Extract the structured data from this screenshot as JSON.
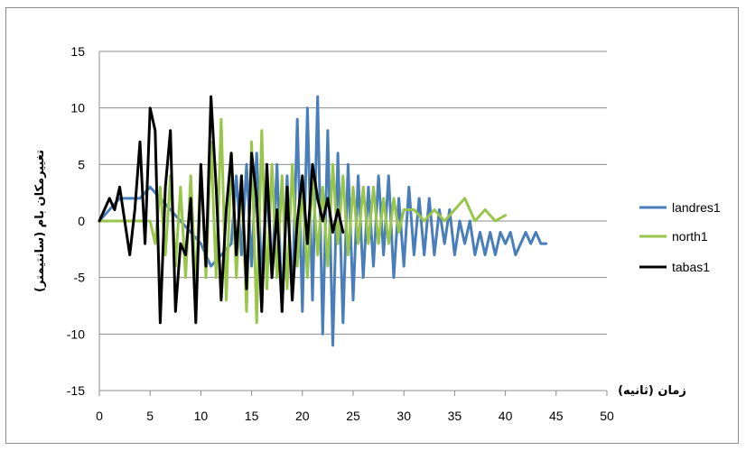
{
  "chart_data": {
    "type": "line",
    "title": "",
    "xlabel": "زمان (ثانیه)",
    "ylabel": "تغییرمکان بام (سانتیمتر)",
    "xlim": [
      0,
      50
    ],
    "ylim": [
      -15,
      15
    ],
    "x_ticks": [
      "0",
      "5",
      "10",
      "15",
      "20",
      "25",
      "30",
      "35",
      "40",
      "45",
      "50"
    ],
    "y_ticks": [
      "15",
      "10",
      "5",
      "0",
      "-5",
      "-10",
      "-15"
    ],
    "grid": "horizontal",
    "legend_position": "right",
    "series": [
      {
        "name": "landres1",
        "color": "#4a7ebb",
        "x": [
          0,
          1,
          2,
          3,
          4,
          5,
          6,
          7,
          8,
          9,
          10,
          11,
          12,
          13,
          13.5,
          14,
          14.5,
          15,
          15.5,
          16,
          16.5,
          17,
          17.5,
          18,
          18.5,
          19,
          19.5,
          20,
          20.5,
          21,
          21.5,
          22,
          22.5,
          23,
          23.5,
          24,
          24.5,
          25,
          25.5,
          26,
          26.5,
          27,
          27.5,
          28,
          28.5,
          29,
          29.5,
          30,
          30.5,
          31,
          31.5,
          32,
          32.5,
          33,
          33.5,
          34,
          34.5,
          35,
          35.5,
          36,
          36.5,
          37,
          37.5,
          38,
          38.5,
          39,
          39.5,
          40,
          40.5,
          41,
          41.5,
          42,
          42.5,
          43,
          43.5,
          44
        ],
        "values": [
          0,
          1,
          2,
          2,
          2,
          3,
          2,
          1,
          0,
          -1,
          -2,
          -4,
          -3,
          -2,
          4,
          -3,
          5,
          -4,
          6,
          -5,
          3,
          -5,
          5,
          -8,
          4,
          -7,
          9,
          -8,
          10,
          -7,
          11,
          -10,
          8,
          -11,
          6,
          -9,
          5,
          -7,
          4,
          -5,
          3,
          -4,
          4,
          -3,
          4,
          -5,
          2,
          -4,
          3,
          -3,
          2,
          -3,
          2,
          -3,
          1,
          -2,
          1,
          -3,
          0,
          -2,
          0,
          -3,
          -1,
          -3,
          -1,
          -3,
          -1,
          -2,
          -1,
          -3,
          -2,
          -1,
          -2,
          -1,
          -2,
          -2
        ]
      },
      {
        "name": "north1",
        "color": "#98c64a",
        "x": [
          0,
          1,
          2,
          3,
          4,
          5,
          5.5,
          6,
          6.5,
          7,
          7.5,
          8,
          8.5,
          9,
          9.5,
          10,
          10.5,
          11,
          11.5,
          12,
          12.5,
          13,
          13.5,
          14,
          14.5,
          15,
          15.5,
          16,
          16.5,
          17,
          17.5,
          18,
          18.5,
          19,
          19.5,
          20,
          20.5,
          21,
          21.5,
          22,
          22.5,
          23,
          23.5,
          24,
          24.5,
          25,
          25.5,
          26,
          26.5,
          27,
          27.5,
          28,
          28.5,
          29,
          29.5,
          30,
          31,
          32,
          33,
          34,
          35,
          36,
          37,
          38,
          39,
          40
        ],
        "values": [
          0,
          0,
          0,
          0,
          0,
          0,
          -2,
          3,
          -3,
          4,
          -4,
          3,
          -5,
          4,
          -6,
          5,
          -5,
          7,
          -5,
          9,
          -7,
          6,
          -5,
          4,
          -8,
          7,
          -9,
          8,
          -6,
          5,
          -5,
          4,
          -6,
          5,
          -4,
          3,
          -5,
          4,
          -3,
          3,
          -4,
          5,
          -2,
          4,
          -3,
          3,
          -2,
          3,
          -2,
          3,
          -2,
          2,
          -2,
          2,
          -1,
          1,
          1,
          0,
          1,
          0,
          1,
          2,
          0,
          1,
          0,
          0.5
        ]
      },
      {
        "name": "tabas1",
        "color": "#000000",
        "x": [
          0,
          0.5,
          1,
          1.5,
          2,
          2.5,
          3,
          3.5,
          4,
          4.5,
          5,
          5.5,
          6,
          6.5,
          7,
          7.5,
          8,
          8.5,
          9,
          9.5,
          10,
          10.5,
          11,
          11.5,
          12,
          12.5,
          13,
          13.5,
          14,
          14.5,
          15,
          15.5,
          16,
          16.5,
          17,
          17.5,
          18,
          18.5,
          19,
          19.5,
          20,
          20.5,
          21,
          21.5,
          22,
          22.5,
          23,
          23.5,
          24
        ],
        "values": [
          0,
          1,
          2,
          1,
          3,
          0,
          -3,
          1,
          7,
          -2,
          10,
          8,
          -9,
          3,
          8,
          -8,
          -2,
          -3,
          2,
          -9,
          5,
          -4,
          11,
          3,
          -7,
          1,
          6,
          -3,
          4,
          -6,
          6,
          2,
          -8,
          5,
          -5,
          1,
          -8,
          3,
          -7,
          0,
          4,
          -2,
          5,
          2,
          0,
          2,
          -1,
          1,
          -1
        ]
      }
    ]
  }
}
